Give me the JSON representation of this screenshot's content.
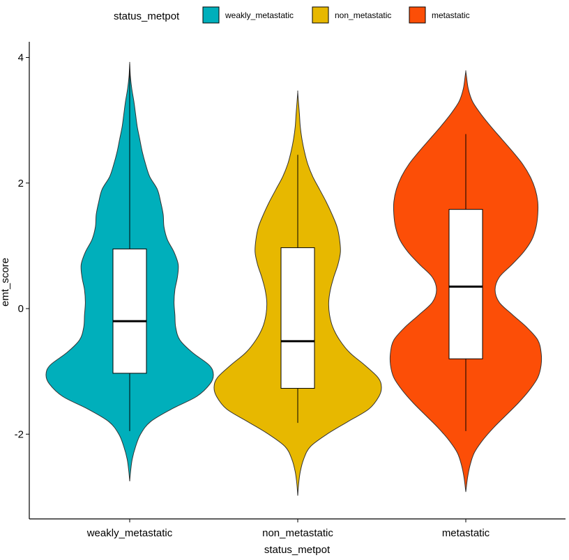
{
  "chart_data": {
    "type": "violin",
    "xlabel": "status_metpot",
    "ylabel": "emt_score",
    "ylim": [
      -3.35,
      4.25
    ],
    "yticks": [
      -2,
      0,
      2,
      4
    ],
    "grid": false,
    "legend": {
      "title": "status_metpot",
      "position": "top"
    },
    "categories": [
      "weakly_metastatic",
      "non_metastatic",
      "metastatic"
    ],
    "series": [
      {
        "name": "weakly_metastatic",
        "color": "#00AFBB",
        "box": {
          "whisker_low": -1.95,
          "q1": -1.03,
          "median": -0.2,
          "q3": 0.95,
          "whisker_high": 3.9
        },
        "density": [
          [
            -2.75,
            0.0
          ],
          [
            -2.6,
            0.01
          ],
          [
            -2.4,
            0.03
          ],
          [
            -2.2,
            0.07
          ],
          [
            -2.0,
            0.13
          ],
          [
            -1.8,
            0.25
          ],
          [
            -1.6,
            0.5
          ],
          [
            -1.4,
            0.8
          ],
          [
            -1.2,
            0.96
          ],
          [
            -1.05,
            1.0
          ],
          [
            -0.9,
            0.95
          ],
          [
            -0.7,
            0.75
          ],
          [
            -0.5,
            0.6
          ],
          [
            -0.3,
            0.55
          ],
          [
            -0.1,
            0.54
          ],
          [
            0.1,
            0.53
          ],
          [
            0.3,
            0.54
          ],
          [
            0.5,
            0.57
          ],
          [
            0.7,
            0.58
          ],
          [
            0.9,
            0.53
          ],
          [
            1.1,
            0.45
          ],
          [
            1.3,
            0.41
          ],
          [
            1.5,
            0.4
          ],
          [
            1.7,
            0.37
          ],
          [
            1.9,
            0.33
          ],
          [
            2.1,
            0.24
          ],
          [
            2.3,
            0.19
          ],
          [
            2.5,
            0.15
          ],
          [
            2.7,
            0.12
          ],
          [
            2.9,
            0.09
          ],
          [
            3.1,
            0.07
          ],
          [
            3.3,
            0.05
          ],
          [
            3.5,
            0.025
          ],
          [
            3.7,
            0.008
          ],
          [
            3.9,
            0.0
          ]
        ]
      },
      {
        "name": "non_metastatic",
        "color": "#E7B800",
        "box": {
          "whisker_low": -1.82,
          "q1": -1.27,
          "median": -0.52,
          "q3": 0.97,
          "whisker_high": 2.45
        },
        "density": [
          [
            -2.98,
            0.0
          ],
          [
            -2.8,
            0.01
          ],
          [
            -2.6,
            0.03
          ],
          [
            -2.4,
            0.07
          ],
          [
            -2.2,
            0.15
          ],
          [
            -2.0,
            0.35
          ],
          [
            -1.8,
            0.6
          ],
          [
            -1.6,
            0.85
          ],
          [
            -1.4,
            0.97
          ],
          [
            -1.25,
            1.0
          ],
          [
            -1.1,
            0.96
          ],
          [
            -0.9,
            0.8
          ],
          [
            -0.7,
            0.62
          ],
          [
            -0.5,
            0.5
          ],
          [
            -0.3,
            0.42
          ],
          [
            -0.1,
            0.38
          ],
          [
            0.1,
            0.37
          ],
          [
            0.3,
            0.39
          ],
          [
            0.5,
            0.43
          ],
          [
            0.7,
            0.48
          ],
          [
            0.9,
            0.51
          ],
          [
            1.1,
            0.5
          ],
          [
            1.3,
            0.47
          ],
          [
            1.5,
            0.41
          ],
          [
            1.7,
            0.34
          ],
          [
            1.9,
            0.26
          ],
          [
            2.1,
            0.18
          ],
          [
            2.3,
            0.12
          ],
          [
            2.5,
            0.08
          ],
          [
            2.7,
            0.05
          ],
          [
            2.9,
            0.03
          ],
          [
            3.1,
            0.02
          ],
          [
            3.3,
            0.008
          ],
          [
            3.45,
            0.0
          ]
        ]
      },
      {
        "name": "metastatic",
        "color": "#FC4E07",
        "box": {
          "whisker_low": -1.95,
          "q1": -0.8,
          "median": 0.35,
          "q3": 1.58,
          "whisker_high": 2.78
        },
        "density": [
          [
            -2.92,
            0.0
          ],
          [
            -2.7,
            0.02
          ],
          [
            -2.5,
            0.05
          ],
          [
            -2.3,
            0.1
          ],
          [
            -2.1,
            0.2
          ],
          [
            -1.9,
            0.33
          ],
          [
            -1.7,
            0.48
          ],
          [
            -1.5,
            0.63
          ],
          [
            -1.3,
            0.76
          ],
          [
            -1.1,
            0.86
          ],
          [
            -0.9,
            0.9
          ],
          [
            -0.7,
            0.9
          ],
          [
            -0.5,
            0.86
          ],
          [
            -0.3,
            0.73
          ],
          [
            -0.1,
            0.56
          ],
          [
            0.1,
            0.4
          ],
          [
            0.3,
            0.35
          ],
          [
            0.5,
            0.4
          ],
          [
            0.7,
            0.55
          ],
          [
            0.9,
            0.69
          ],
          [
            1.1,
            0.79
          ],
          [
            1.3,
            0.84
          ],
          [
            1.5,
            0.86
          ],
          [
            1.7,
            0.86
          ],
          [
            1.9,
            0.83
          ],
          [
            2.1,
            0.77
          ],
          [
            2.3,
            0.68
          ],
          [
            2.5,
            0.56
          ],
          [
            2.7,
            0.43
          ],
          [
            2.9,
            0.3
          ],
          [
            3.1,
            0.18
          ],
          [
            3.3,
            0.08
          ],
          [
            3.5,
            0.03
          ],
          [
            3.7,
            0.008
          ],
          [
            3.78,
            0.0
          ]
        ]
      }
    ]
  }
}
